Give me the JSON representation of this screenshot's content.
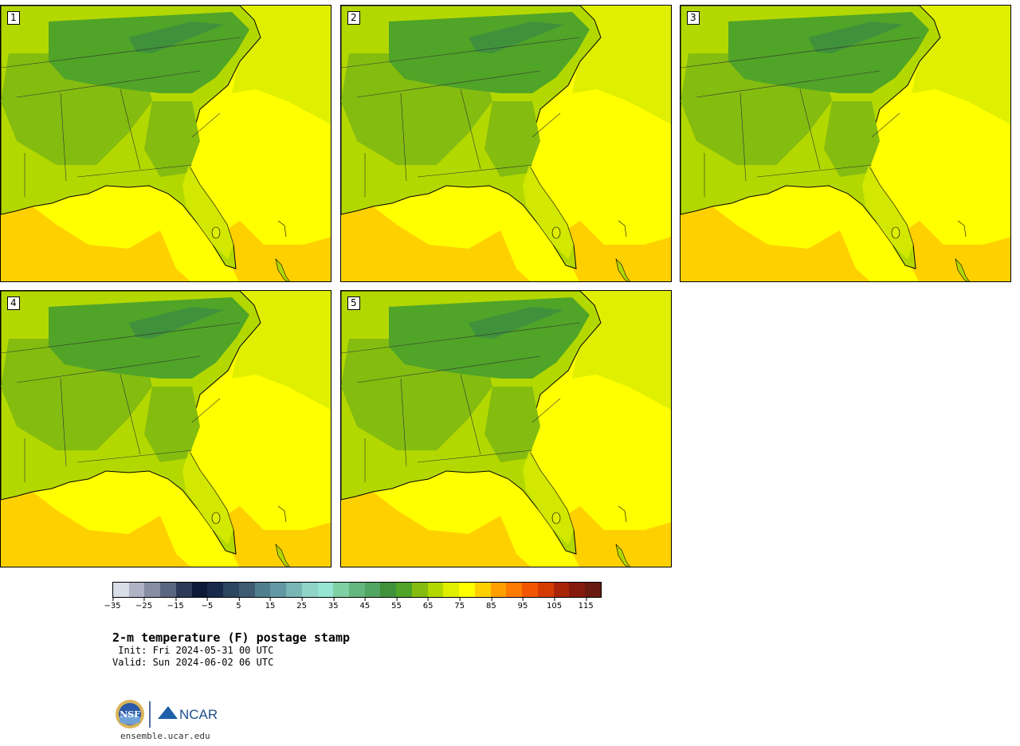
{
  "panels": [
    {
      "label": "1"
    },
    {
      "label": "2"
    },
    {
      "label": "3"
    },
    {
      "label": "4"
    },
    {
      "label": "5"
    }
  ],
  "colorbar": {
    "colors": [
      "#d9dde6",
      "#aeb3c6",
      "#858ea3",
      "#5b6780",
      "#2e3a58",
      "#0e1a37",
      "#18294a",
      "#2c4660",
      "#3e5b72",
      "#4f7f8d",
      "#6298a3",
      "#78b6b6",
      "#8ed4c9",
      "#96e5d3",
      "#7ed0a4",
      "#66b67f",
      "#53a563",
      "#3f913c",
      "#50a428",
      "#84bc10",
      "#b3d800",
      "#e0ef00",
      "#ffff00",
      "#ffd000",
      "#ffa000",
      "#ff7a00",
      "#f25500",
      "#d43b00",
      "#a82509",
      "#851a0c",
      "#6a1a10"
    ],
    "ticks": [
      "−35",
      "−25",
      "−15",
      "−5",
      "5",
      "15",
      "25",
      "35",
      "45",
      "55",
      "65",
      "75",
      "85",
      "95",
      "105",
      "115"
    ]
  },
  "map_palette": {
    "dark_green": "#50a428",
    "mid_green": "#84bc10",
    "yellow_green": "#b3d800",
    "lime": "#e0ef00",
    "yellow": "#ffff00",
    "orange": "#ffd000",
    "mountain_teal": "#3f913c"
  },
  "title": "2-m temperature (F) postage stamp",
  "init_line": " Init: Fri 2024-05-31 00 UTC",
  "valid_line": "Valid: Sun 2024-06-02 06 UTC",
  "logo": {
    "nsf_text": "NSF",
    "ncar_text": "NCAR"
  },
  "url": "ensemble.ucar.edu"
}
